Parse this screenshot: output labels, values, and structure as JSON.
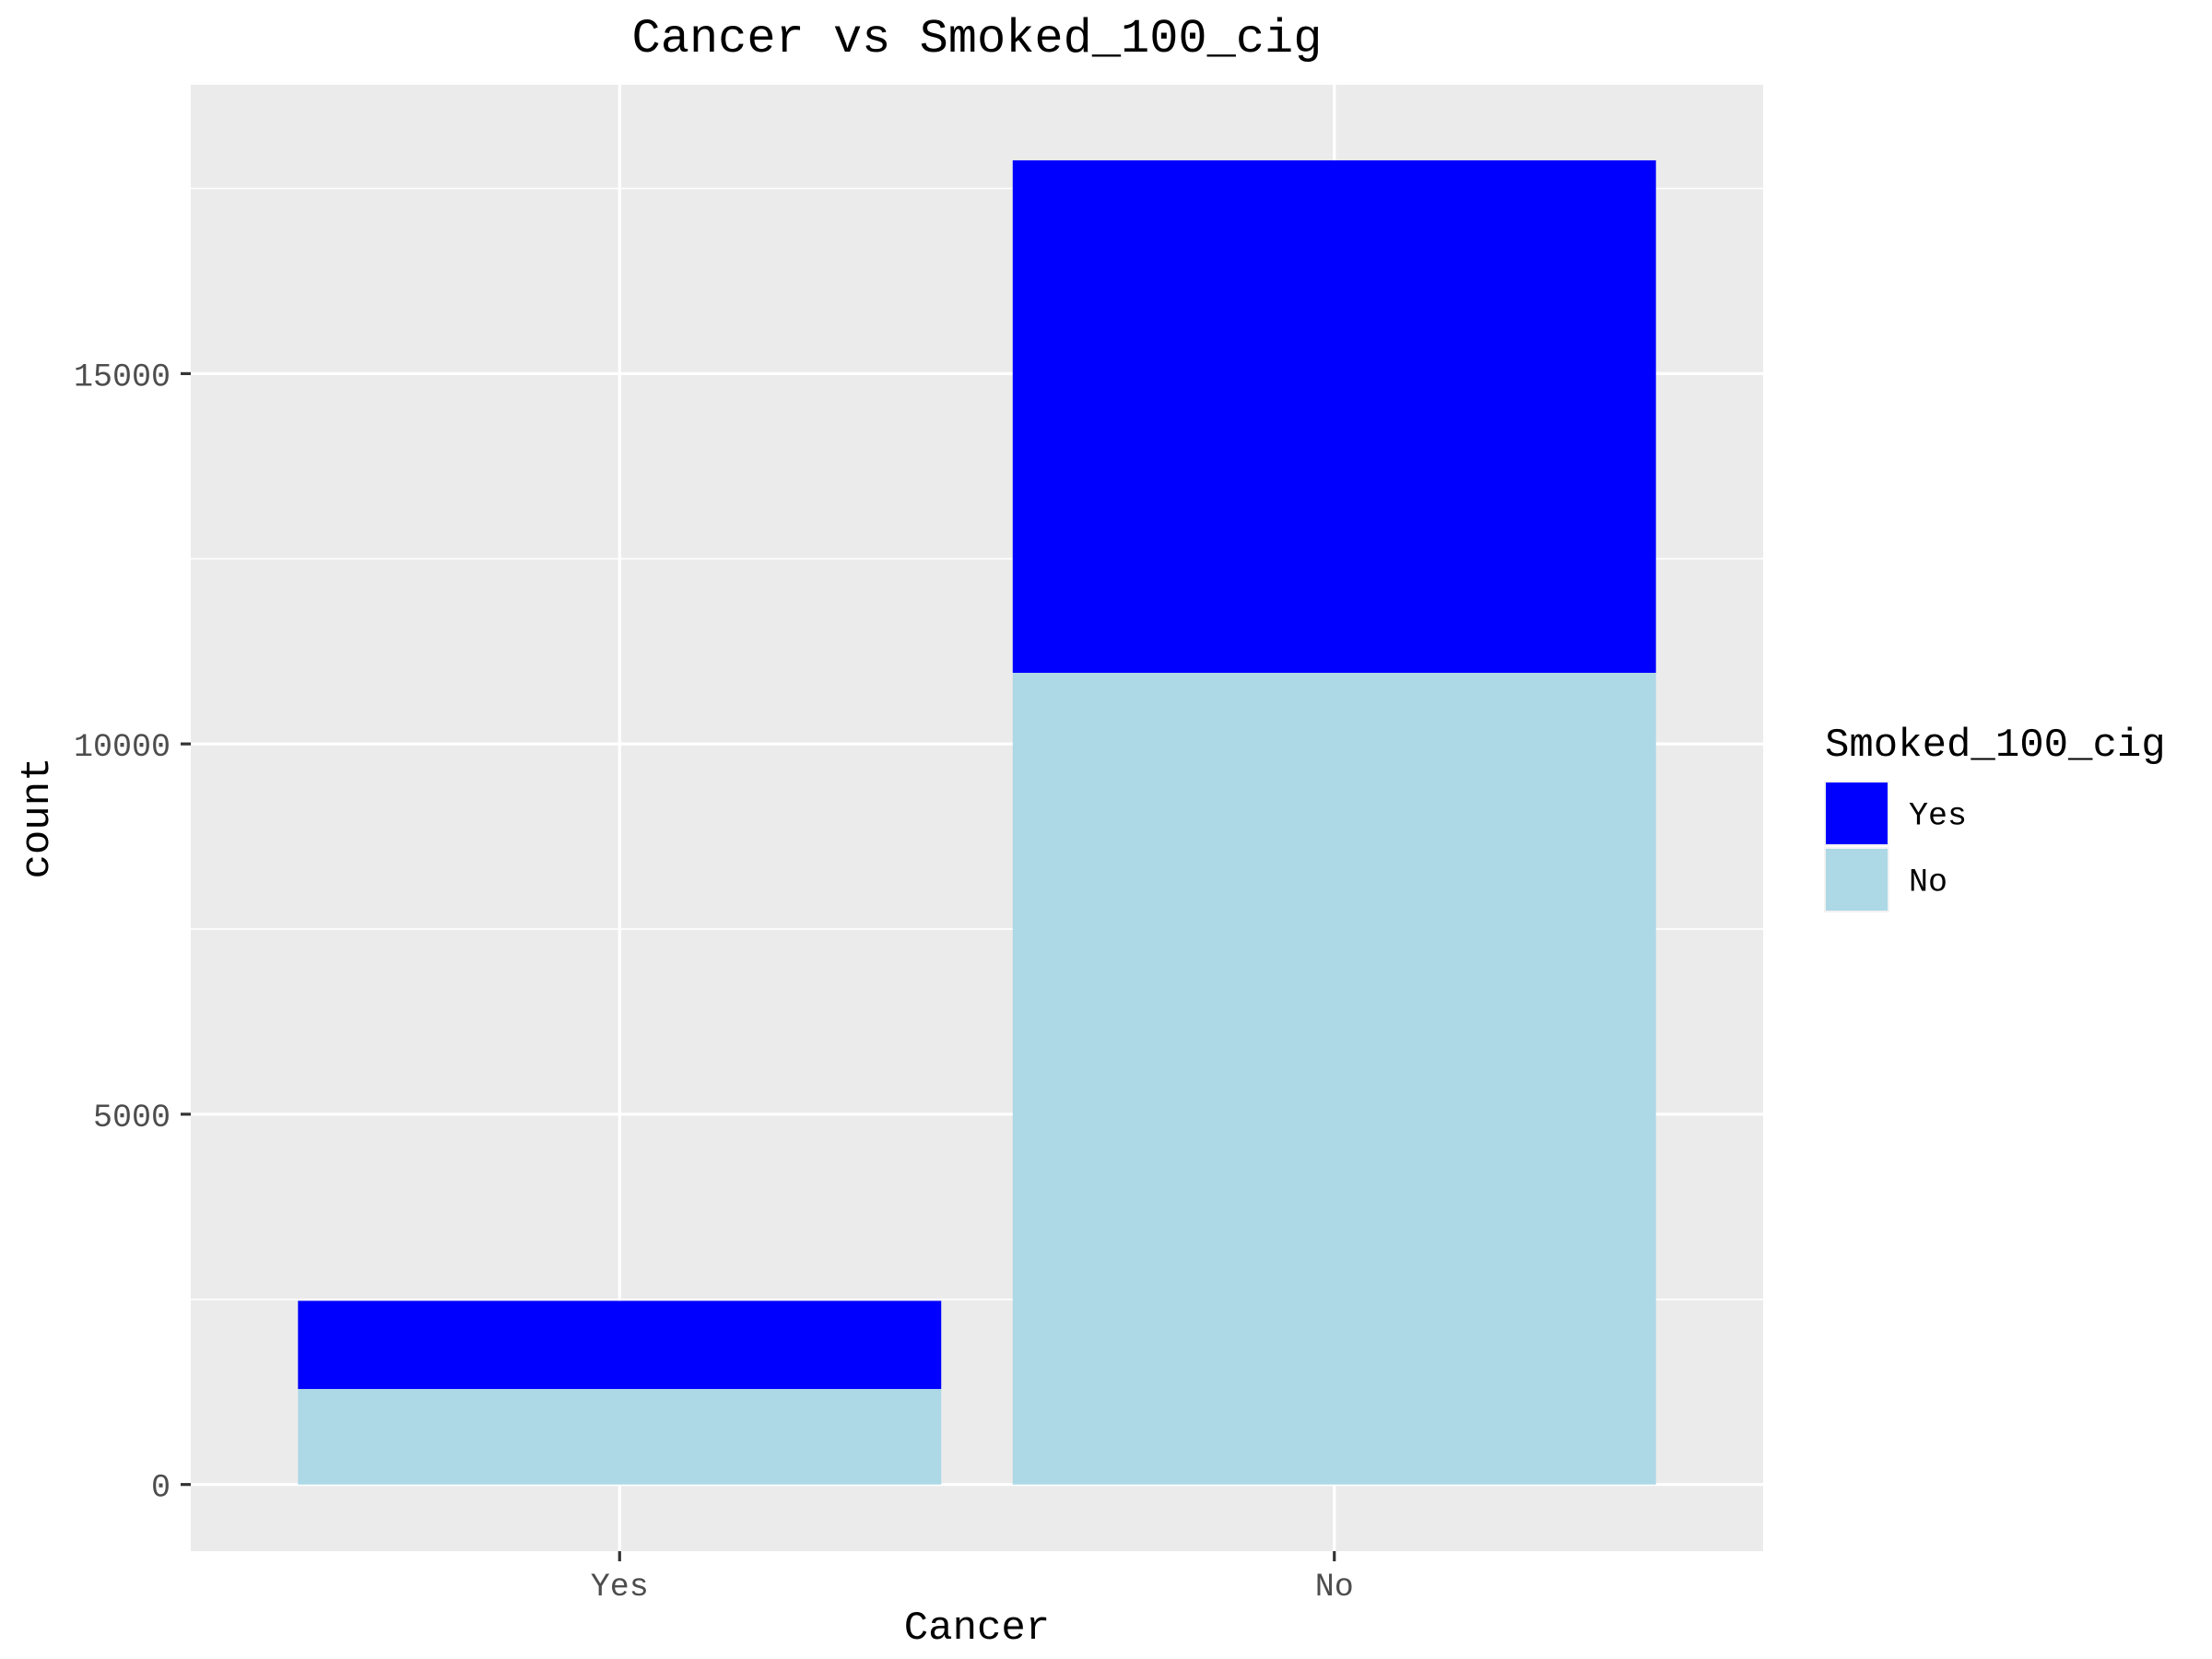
{
  "chart_data": {
    "type": "bar",
    "stacked": true,
    "title": "Cancer vs Smoked_100_cig",
    "xlabel": "Cancer",
    "ylabel": "count",
    "categories": [
      "Yes",
      "No"
    ],
    "series": [
      {
        "name": "No",
        "color": "#ADD8E6",
        "values": [
          1290,
          10960
        ]
      },
      {
        "name": "Yes",
        "color": "#0000FF",
        "values": [
          1190,
          6920
        ]
      }
    ],
    "ylim": [
      -900,
      18900
    ],
    "yticks": [
      0,
      5000,
      10000,
      15000
    ],
    "grid": true,
    "legend": {
      "title": "Smoked_100_cig",
      "position": "right",
      "entries": [
        {
          "label": "Yes",
          "color": "#0000FF"
        },
        {
          "label": "No",
          "color": "#ADD8E6"
        }
      ]
    }
  }
}
